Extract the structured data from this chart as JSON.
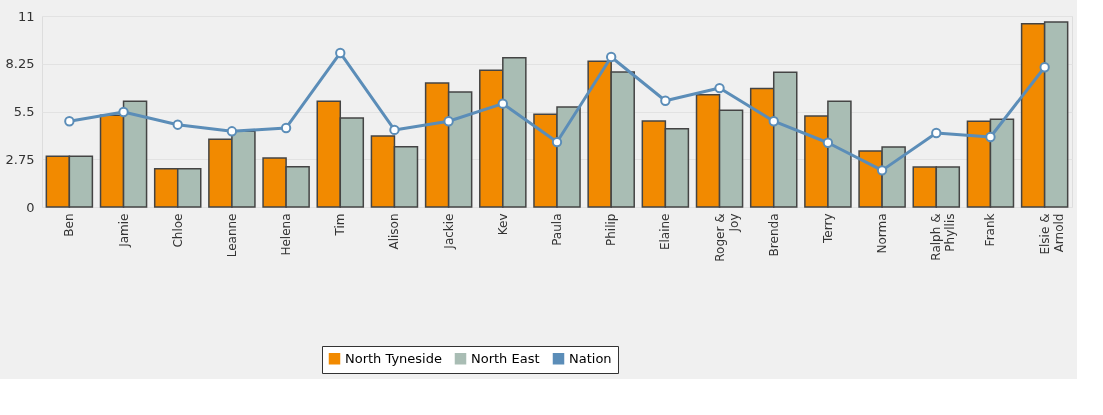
{
  "chart_data": {
    "type": "bar",
    "categories": [
      "Ben",
      "Jamie",
      "Chloe",
      "Leanne",
      "Helena",
      "Tim",
      "Alison",
      "Jackie",
      "Kev",
      "Paula",
      "Philip",
      "Elaine",
      "Roger & Joy",
      "Brenda",
      "Terry",
      "Norma",
      "Ralph & Phyllis",
      "Frank",
      "Elsie & Arnold"
    ],
    "series": [
      {
        "name": "North Tyneside",
        "color": "#f28a00",
        "values": [
          2.92,
          5.28,
          2.21,
          3.9,
          2.82,
          6.09,
          4.09,
          7.14,
          7.87,
          5.34,
          8.39,
          4.95,
          6.47,
          6.82,
          5.24,
          3.23,
          2.3,
          4.94,
          10.56
        ]
      },
      {
        "name": "North East",
        "color": "#a9bdb4",
        "values": [
          2.92,
          6.09,
          2.21,
          4.36,
          2.32,
          5.13,
          3.47,
          6.62,
          8.6,
          5.76,
          7.78,
          4.51,
          5.57,
          7.76,
          6.09,
          3.46,
          2.3,
          5.05,
          10.66
        ]
      },
      {
        "name": "Nation",
        "type": "line",
        "color": "#5b8db8",
        "values": [
          4.94,
          5.47,
          4.74,
          4.36,
          4.55,
          8.87,
          4.44,
          4.94,
          5.95,
          3.74,
          8.64,
          6.12,
          6.85,
          4.94,
          3.7,
          2.11,
          4.26,
          4.03,
          8.05
        ]
      }
    ],
    "ylim": [
      0,
      11
    ],
    "yticks": [
      0,
      2.75,
      5.5,
      8.25,
      11
    ],
    "grid": "y",
    "legend": "bottom",
    "marker": "circle",
    "line_style": "solid"
  }
}
